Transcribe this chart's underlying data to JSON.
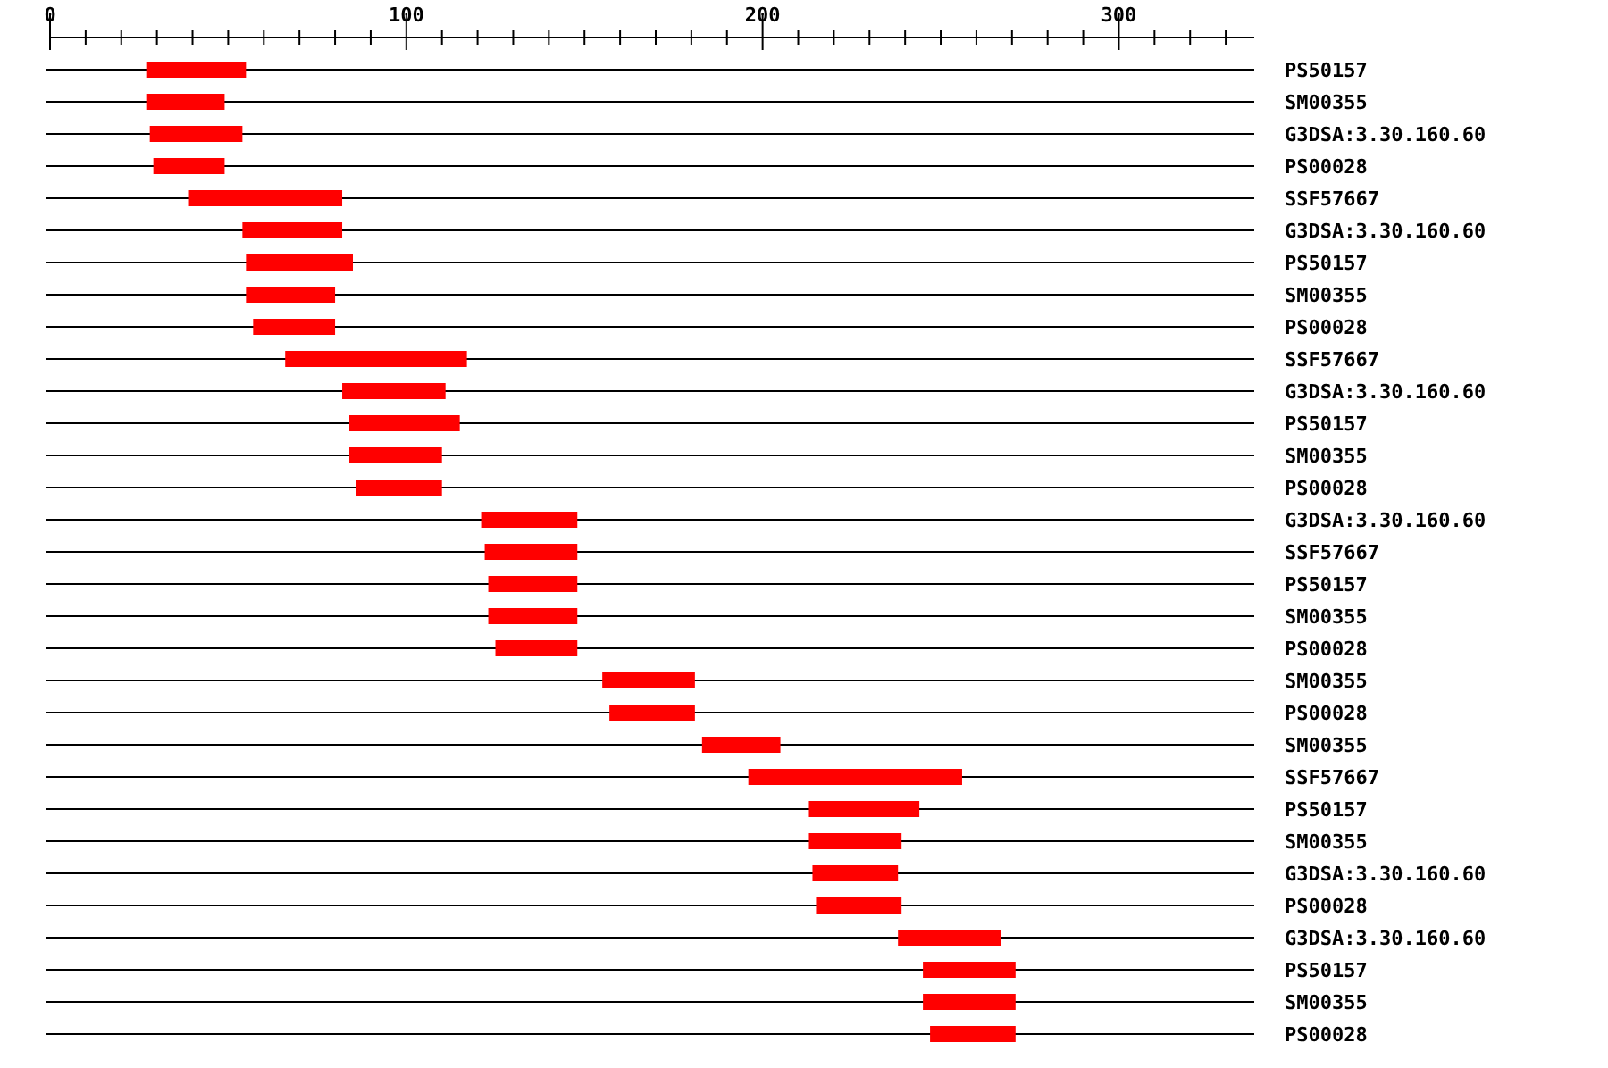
{
  "chart_data": {
    "type": "bar",
    "orientation": "horizontal",
    "grid": "y",
    "categories": [
      "PS50157",
      "SM00355",
      "G3DSA:3.30.160.60",
      "PS00028",
      "SSF57667",
      "G3DSA:3.30.160.60",
      "PS50157",
      "SM00355",
      "PS00028",
      "SSF57667",
      "G3DSA:3.30.160.60",
      "PS50157",
      "SM00355",
      "PS00028",
      "G3DSA:3.30.160.60",
      "SSF57667",
      "PS50157",
      "SM00355",
      "PS00028",
      "SM00355",
      "PS00028",
      "SM00355",
      "SSF57667",
      "PS50157",
      "SM00355",
      "G3DSA:3.30.160.60",
      "PS00028",
      "G3DSA:3.30.160.60",
      "PS50157",
      "SM00355",
      "PS00028"
    ],
    "base": [
      27,
      27,
      28,
      29,
      39,
      54,
      55,
      55,
      57,
      66,
      82,
      84,
      84,
      86,
      121,
      122,
      123,
      123,
      125,
      155,
      157,
      183,
      196,
      213,
      213,
      214,
      215,
      238,
      245,
      245,
      247
    ],
    "values": [
      28,
      22,
      26,
      20,
      43,
      28,
      30,
      25,
      23,
      51,
      29,
      31,
      26,
      24,
      27,
      26,
      25,
      25,
      23,
      26,
      24,
      22,
      60,
      31,
      26,
      24,
      24,
      29,
      26,
      26,
      24
    ],
    "color": "#ff0000",
    "xlim": [
      0,
      338
    ],
    "xticks": [
      0,
      {
        "value": 10,
        "label": null
      },
      {
        "value": 20,
        "label": null
      },
      {
        "value": 30,
        "label": null
      },
      {
        "value": 40,
        "label": null
      },
      {
        "value": 50,
        "label": null
      },
      {
        "value": 60,
        "label": null
      },
      {
        "value": 70,
        "label": null
      },
      {
        "value": 80,
        "label": null
      },
      {
        "value": 90,
        "label": null
      },
      100,
      {
        "value": 110,
        "label": null
      },
      {
        "value": 120,
        "label": null
      },
      {
        "value": 130,
        "label": null
      },
      {
        "value": 140,
        "label": null
      },
      {
        "value": 150,
        "label": null
      },
      {
        "value": 160,
        "label": null
      },
      {
        "value": 170,
        "label": null
      },
      {
        "value": 180,
        "label": null
      },
      {
        "value": 190,
        "label": null
      },
      200,
      {
        "value": 210,
        "label": null
      },
      {
        "value": 220,
        "label": null
      },
      {
        "value": 230,
        "label": null
      },
      {
        "value": 240,
        "label": null
      },
      {
        "value": 250,
        "label": null
      },
      {
        "value": 260,
        "label": null
      },
      {
        "value": 270,
        "label": null
      },
      {
        "value": 280,
        "label": null
      },
      {
        "value": 290,
        "label": null
      },
      300,
      {
        "value": 310,
        "label": null
      },
      {
        "value": 320,
        "label": null
      },
      {
        "value": 330,
        "label": null
      }
    ]
  }
}
